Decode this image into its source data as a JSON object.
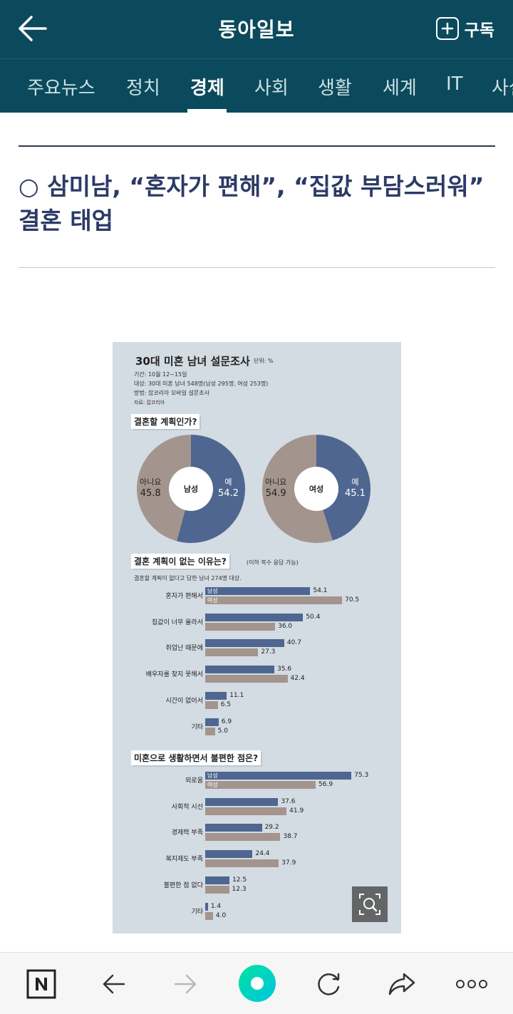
{
  "header": {
    "app_title": "동아일보",
    "subscribe_label": "구독"
  },
  "tabs": [
    {
      "label": "주요뉴스",
      "active": false
    },
    {
      "label": "정치",
      "active": false
    },
    {
      "label": "경제",
      "active": true
    },
    {
      "label": "사회",
      "active": false
    },
    {
      "label": "생활",
      "active": false
    },
    {
      "label": "세계",
      "active": false
    },
    {
      "label": "IT",
      "active": false
    },
    {
      "label": "사설",
      "active": false
    }
  ],
  "article": {
    "headline": "○ 삼미남, “혼자가 편해”, “집값 부담스러워” 결혼 태업"
  },
  "infographic": {
    "title": "30대 미혼 남녀 설문조사",
    "unit": "단위: %",
    "meta": [
      "기간: 10월 12~15일",
      "대상: 30대 미혼 남녀 548명(남성 295명, 여성 253명)",
      "방법: 잡코리아 모바일 설문조사",
      "자료: 잡코리아"
    ],
    "colors": {
      "male": "#4e6690",
      "female": "#a3958d",
      "background": "#d3dbe3"
    }
  },
  "chart_data": [
    {
      "type": "pie",
      "title": "결혼할 계획인가?",
      "center_label": "남성",
      "slices": [
        {
          "label": "예",
          "value": 54.2
        },
        {
          "label": "아니요",
          "value": 45.8
        }
      ]
    },
    {
      "type": "pie",
      "title": "결혼할 계획인가?",
      "center_label": "여성",
      "slices": [
        {
          "label": "예",
          "value": 45.1
        },
        {
          "label": "아니요",
          "value": 54.9
        }
      ]
    },
    {
      "type": "bar",
      "orientation": "horizontal",
      "title": "결혼 계획이 없는 이유는?",
      "subtitle": "(이하 복수 응답 가능)",
      "note": "결혼할 계획이 없다고 답한 남녀 274명 대상.",
      "categories": [
        "혼자가 편해서",
        "집값이 너무 올라서",
        "취업난 때문에",
        "배우자를 찾지 못해서",
        "시간이 없어서",
        "기타"
      ],
      "series": [
        {
          "name": "남성",
          "values": [
            54.1,
            50.4,
            40.7,
            35.6,
            11.1,
            6.9
          ]
        },
        {
          "name": "여성",
          "values": [
            70.5,
            36.0,
            27.3,
            42.4,
            6.5,
            5.0
          ]
        }
      ]
    },
    {
      "type": "bar",
      "orientation": "horizontal",
      "title": "미혼으로 생활하면서 불편한 점은?",
      "categories": [
        "외로움",
        "사회적 시선",
        "경제력 부족",
        "복지제도 부족",
        "불편한 점 없다",
        "기타"
      ],
      "series": [
        {
          "name": "남성",
          "values": [
            75.3,
            37.6,
            29.2,
            24.4,
            12.5,
            1.4
          ]
        },
        {
          "name": "여성",
          "values": [
            56.9,
            41.9,
            38.7,
            37.9,
            12.3,
            4.0
          ]
        }
      ]
    }
  ],
  "bottom_nav": {
    "items": [
      {
        "name": "naver-home-button",
        "icon": "n-logo-icon"
      },
      {
        "name": "back-button",
        "icon": "arrow-left-icon"
      },
      {
        "name": "forward-button",
        "icon": "arrow-right-icon"
      },
      {
        "name": "green-dot-button",
        "icon": "green-dot-icon"
      },
      {
        "name": "refresh-button",
        "icon": "refresh-icon"
      },
      {
        "name": "share-button",
        "icon": "share-icon"
      },
      {
        "name": "more-button",
        "icon": "more-dots-icon"
      }
    ]
  }
}
